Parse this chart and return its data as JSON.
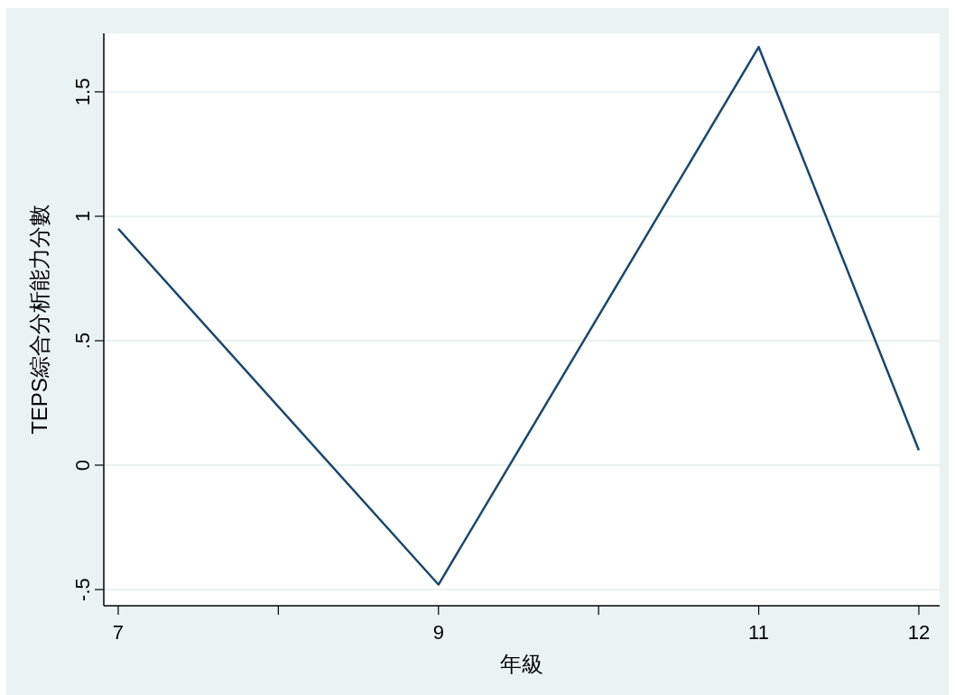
{
  "chart_data": {
    "type": "line",
    "xlabel": "年級",
    "ylabel": "TEPS綜合分析能力分數",
    "x": [
      7,
      9,
      11,
      12
    ],
    "series": [
      {
        "color": "#1a476f",
        "values": [
          0.95,
          -0.48,
          1.68,
          0.06
        ]
      }
    ],
    "xlim": [
      6.91,
      12.13
    ],
    "ylim": [
      -0.565,
      1.735
    ],
    "xticks": [
      7,
      {
        "value": 8,
        "label": null
      },
      9,
      {
        "value": 10,
        "label": null
      },
      11,
      12
    ],
    "yticks": [
      {
        "value": -0.5,
        "label": "-.5"
      },
      0,
      {
        "value": 0.5,
        "label": ".5"
      },
      1,
      1.5
    ],
    "grid": "y"
  }
}
